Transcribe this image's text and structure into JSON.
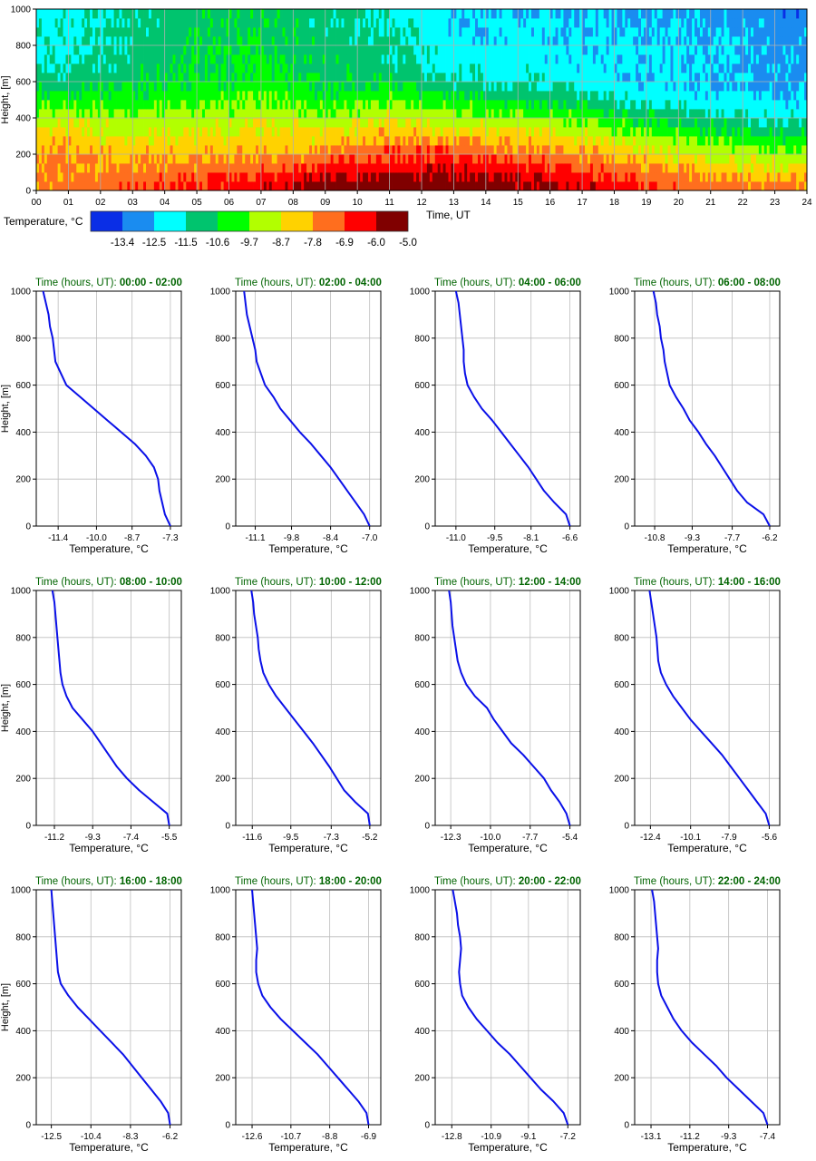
{
  "chart_data": [
    {
      "type": "heatmap",
      "title": "",
      "xlabel": "Time, UT",
      "ylabel": "Height, [m]",
      "xlim": [
        0,
        24
      ],
      "ylim": [
        0,
        1000
      ],
      "x_ticks": [
        "00",
        "01",
        "02",
        "03",
        "04",
        "05",
        "06",
        "07",
        "08",
        "09",
        "10",
        "11",
        "12",
        "13",
        "14",
        "15",
        "16",
        "17",
        "18",
        "19",
        "20",
        "21",
        "22",
        "23",
        "24"
      ],
      "y_ticks": [
        "0",
        "200",
        "400",
        "600",
        "800",
        "1000"
      ],
      "heights": [
        0,
        100,
        150,
        200,
        250,
        300,
        350,
        400,
        450,
        500,
        550,
        600,
        650,
        700,
        750,
        800,
        850,
        900,
        950,
        1000
      ],
      "times": [
        0,
        2,
        4,
        6,
        8,
        10,
        12,
        14,
        16,
        18,
        20,
        22,
        24
      ],
      "colorbar": {
        "label": "Temperature, °C",
        "tick_labels": [
          "-13.4",
          "-12.5",
          "-11.5",
          "-10.6",
          "-9.7",
          "-8.7",
          "-7.8",
          "-6.9",
          "-6.0",
          "-5.0"
        ],
        "bounds": [
          -14.3,
          -13.4,
          -12.5,
          -11.5,
          -10.6,
          -9.7,
          -8.7,
          -7.8,
          -6.9,
          -6.0,
          -5.0
        ],
        "colors": [
          "#0a2ee6",
          "#1a8cf0",
          "#00ffff",
          "#00c46e",
          "#00ff00",
          "#b2ff00",
          "#ffd200",
          "#ff6e1e",
          "#ff0000",
          "#800000"
        ]
      }
    },
    {
      "type": "line",
      "title": "Time (hours, UT): 00:00 - 02:00",
      "xlabel": "Temperature, °C",
      "ylabel": "Height, [m]",
      "xlim": [
        -12.2,
        -6.9
      ],
      "ylim": [
        0,
        1000
      ],
      "x_ticks": [
        -11.4,
        -10.0,
        -8.7,
        -7.3
      ],
      "x_tick_labels": [
        "-11.4",
        "-10.0",
        "-8.7",
        "-7.3"
      ],
      "y_ticks": [
        "0",
        "200",
        "400",
        "600",
        "800",
        "1000"
      ],
      "heights": [
        0,
        50,
        100,
        150,
        200,
        250,
        300,
        350,
        400,
        450,
        500,
        550,
        600,
        650,
        700,
        750,
        800,
        850,
        900,
        950,
        1000
      ],
      "values": [
        -7.3,
        -7.5,
        -7.6,
        -7.7,
        -7.75,
        -7.9,
        -8.2,
        -8.6,
        -9.1,
        -9.6,
        -10.1,
        -10.6,
        -11.1,
        -11.3,
        -11.5,
        -11.55,
        -11.6,
        -11.7,
        -11.75,
        -11.85,
        -11.95
      ]
    },
    {
      "type": "line",
      "title": "Time (hours, UT): 02:00 - 04:00",
      "xlabel": "Temperature, °C",
      "ylabel": "Height, [m]",
      "xlim": [
        -11.8,
        -6.6
      ],
      "ylim": [
        0,
        1000
      ],
      "x_ticks": [
        -11.1,
        -9.8,
        -8.4,
        -7.0
      ],
      "x_tick_labels": [
        "-11.1",
        "-9.8",
        "-8.4",
        "-7.0"
      ],
      "y_ticks": [
        "0",
        "200",
        "400",
        "600",
        "800",
        "1000"
      ],
      "heights": [
        0,
        50,
        100,
        150,
        200,
        250,
        300,
        350,
        400,
        450,
        500,
        550,
        600,
        650,
        700,
        750,
        800,
        850,
        900,
        950,
        1000
      ],
      "values": [
        -7.0,
        -7.2,
        -7.5,
        -7.8,
        -8.1,
        -8.4,
        -8.75,
        -9.1,
        -9.5,
        -9.85,
        -10.2,
        -10.45,
        -10.75,
        -10.9,
        -11.05,
        -11.1,
        -11.2,
        -11.3,
        -11.4,
        -11.45,
        -11.5
      ]
    },
    {
      "type": "line",
      "title": "Time (hours, UT): 04:00 - 06:00",
      "xlabel": "Temperature, °C",
      "ylabel": "Height, [m]",
      "xlim": [
        -11.8,
        -6.2
      ],
      "ylim": [
        0,
        1000
      ],
      "x_ticks": [
        -11.0,
        -9.5,
        -8.1,
        -6.6
      ],
      "x_tick_labels": [
        "-11.0",
        "-9.5",
        "-8.1",
        "-6.6"
      ],
      "y_ticks": [
        "0",
        "200",
        "400",
        "600",
        "800",
        "1000"
      ],
      "heights": [
        0,
        50,
        100,
        150,
        200,
        250,
        300,
        350,
        400,
        450,
        500,
        550,
        600,
        650,
        700,
        750,
        800,
        850,
        900,
        950,
        1000
      ],
      "values": [
        -6.6,
        -6.75,
        -7.2,
        -7.6,
        -7.9,
        -8.2,
        -8.55,
        -8.9,
        -9.25,
        -9.6,
        -10.0,
        -10.3,
        -10.55,
        -10.65,
        -10.7,
        -10.7,
        -10.75,
        -10.8,
        -10.85,
        -10.9,
        -11.0
      ]
    },
    {
      "type": "line",
      "title": "Time (hours, UT): 06:00 - 08:00",
      "xlabel": "Temperature, °C",
      "ylabel": "Height, [m]",
      "xlim": [
        -11.6,
        -5.8
      ],
      "ylim": [
        0,
        1000
      ],
      "x_ticks": [
        -10.8,
        -9.3,
        -7.7,
        -6.2
      ],
      "x_tick_labels": [
        "-10.8",
        "-9.3",
        "-7.7",
        "-6.2"
      ],
      "y_ticks": [
        "0",
        "200",
        "400",
        "600",
        "800",
        "1000"
      ],
      "heights": [
        0,
        50,
        100,
        150,
        200,
        250,
        300,
        350,
        400,
        450,
        500,
        550,
        600,
        650,
        700,
        750,
        800,
        850,
        900,
        950,
        1000
      ],
      "values": [
        -6.2,
        -6.45,
        -7.1,
        -7.5,
        -7.8,
        -8.1,
        -8.4,
        -8.75,
        -9.05,
        -9.4,
        -9.65,
        -9.95,
        -10.2,
        -10.3,
        -10.4,
        -10.45,
        -10.55,
        -10.6,
        -10.7,
        -10.75,
        -10.85
      ]
    },
    {
      "type": "line",
      "title": "Time (hours, UT): 08:00 - 10:00",
      "xlabel": "Temperature, °C",
      "ylabel": "Height, [m]",
      "xlim": [
        -12.1,
        -4.9
      ],
      "ylim": [
        0,
        1000
      ],
      "x_ticks": [
        -11.2,
        -9.3,
        -7.4,
        -5.5
      ],
      "x_tick_labels": [
        "-11.2",
        "-9.3",
        "-7.4",
        "-5.5"
      ],
      "y_ticks": [
        "0",
        "200",
        "400",
        "600",
        "800",
        "1000"
      ],
      "heights": [
        0,
        50,
        100,
        150,
        200,
        250,
        300,
        350,
        400,
        450,
        500,
        550,
        600,
        650,
        700,
        750,
        800,
        850,
        900,
        950,
        1000
      ],
      "values": [
        -5.5,
        -5.6,
        -6.3,
        -7.0,
        -7.6,
        -8.1,
        -8.5,
        -8.9,
        -9.3,
        -9.8,
        -10.3,
        -10.6,
        -10.8,
        -10.9,
        -10.95,
        -11.0,
        -11.05,
        -11.1,
        -11.15,
        -11.2,
        -11.3
      ]
    },
    {
      "type": "line",
      "title": "Time (hours, UT): 10:00 - 12:00",
      "xlabel": "Temperature, °C",
      "ylabel": "Height, [m]",
      "xlim": [
        -12.5,
        -4.6
      ],
      "ylim": [
        0,
        1000
      ],
      "x_ticks": [
        -11.6,
        -9.5,
        -7.3,
        -5.2
      ],
      "x_tick_labels": [
        "-11.6",
        "-9.5",
        "-7.3",
        "-5.2"
      ],
      "y_ticks": [
        "0",
        "200",
        "400",
        "600",
        "800",
        "1000"
      ],
      "heights": [
        0,
        50,
        100,
        150,
        200,
        250,
        300,
        350,
        400,
        450,
        500,
        550,
        600,
        650,
        700,
        750,
        800,
        850,
        900,
        950,
        1000
      ],
      "values": [
        -5.2,
        -5.3,
        -6.0,
        -6.6,
        -7.0,
        -7.4,
        -7.85,
        -8.3,
        -8.8,
        -9.3,
        -9.8,
        -10.3,
        -10.7,
        -11.0,
        -11.15,
        -11.25,
        -11.3,
        -11.4,
        -11.5,
        -11.55,
        -11.65
      ]
    },
    {
      "type": "line",
      "title": "Time (hours, UT): 12:00 - 14:00",
      "xlabel": "Temperature, °C",
      "ylabel": "Height, [m]",
      "xlim": [
        -13.2,
        -4.8
      ],
      "ylim": [
        0,
        1000
      ],
      "x_ticks": [
        -12.3,
        -10.0,
        -7.7,
        -5.4
      ],
      "x_tick_labels": [
        "-12.3",
        "-10.0",
        "-7.7",
        "-5.4"
      ],
      "y_ticks": [
        "0",
        "200",
        "400",
        "600",
        "800",
        "1000"
      ],
      "heights": [
        0,
        50,
        100,
        150,
        200,
        250,
        300,
        350,
        400,
        450,
        500,
        550,
        600,
        650,
        700,
        750,
        800,
        850,
        900,
        950,
        1000
      ],
      "values": [
        -5.4,
        -5.6,
        -6.0,
        -6.5,
        -6.9,
        -7.5,
        -8.1,
        -8.8,
        -9.3,
        -9.8,
        -10.2,
        -10.9,
        -11.4,
        -11.7,
        -11.9,
        -12.0,
        -12.1,
        -12.2,
        -12.25,
        -12.3,
        -12.4
      ]
    },
    {
      "type": "line",
      "title": "Time (hours, UT): 14:00 - 16:00",
      "xlabel": "Temperature, °C",
      "ylabel": "Height, [m]",
      "xlim": [
        -13.3,
        -5.0
      ],
      "ylim": [
        0,
        1000
      ],
      "x_ticks": [
        -12.4,
        -10.1,
        -7.9,
        -5.6
      ],
      "x_tick_labels": [
        "-12.4",
        "-10.1",
        "-7.9",
        "-5.6"
      ],
      "y_ticks": [
        "0",
        "200",
        "400",
        "600",
        "800",
        "1000"
      ],
      "heights": [
        0,
        50,
        100,
        150,
        200,
        250,
        300,
        350,
        400,
        450,
        500,
        550,
        600,
        650,
        700,
        750,
        800,
        850,
        900,
        950,
        1000
      ],
      "values": [
        -5.6,
        -5.8,
        -6.3,
        -6.8,
        -7.3,
        -7.8,
        -8.3,
        -8.9,
        -9.5,
        -10.1,
        -10.6,
        -11.1,
        -11.5,
        -11.8,
        -11.95,
        -12.0,
        -12.05,
        -12.15,
        -12.25,
        -12.35,
        -12.45
      ]
    },
    {
      "type": "line",
      "title": "Time (hours, UT): 16:00 - 18:00",
      "xlabel": "Temperature, °C",
      "ylabel": "Height, [m]",
      "xlim": [
        -13.3,
        -5.6
      ],
      "ylim": [
        0,
        1000
      ],
      "x_ticks": [
        -12.5,
        -10.4,
        -8.3,
        -6.2
      ],
      "x_tick_labels": [
        "-12.5",
        "-10.4",
        "-8.3",
        "-6.2"
      ],
      "y_ticks": [
        "0",
        "200",
        "400",
        "600",
        "800",
        "1000"
      ],
      "heights": [
        0,
        50,
        100,
        150,
        200,
        250,
        300,
        350,
        400,
        450,
        500,
        550,
        600,
        650,
        700,
        750,
        800,
        850,
        900,
        950,
        1000
      ],
      "values": [
        -6.2,
        -6.3,
        -6.7,
        -7.2,
        -7.7,
        -8.2,
        -8.7,
        -9.3,
        -9.9,
        -10.5,
        -11.1,
        -11.6,
        -12.0,
        -12.15,
        -12.2,
        -12.25,
        -12.3,
        -12.35,
        -12.4,
        -12.45,
        -12.5
      ]
    },
    {
      "type": "line",
      "title": "Time (hours, UT): 18:00 - 20:00",
      "xlabel": "Temperature, °C",
      "ylabel": "Height, [m]",
      "xlim": [
        -13.4,
        -6.3
      ],
      "ylim": [
        0,
        1000
      ],
      "x_ticks": [
        -12.6,
        -10.7,
        -8.8,
        -6.9
      ],
      "x_tick_labels": [
        "-12.6",
        "-10.7",
        "-8.8",
        "-6.9"
      ],
      "y_ticks": [
        "0",
        "200",
        "400",
        "600",
        "800",
        "1000"
      ],
      "heights": [
        0,
        50,
        100,
        150,
        200,
        250,
        300,
        350,
        400,
        450,
        500,
        550,
        600,
        650,
        700,
        750,
        800,
        850,
        900,
        950,
        1000
      ],
      "values": [
        -6.9,
        -7.0,
        -7.4,
        -7.9,
        -8.4,
        -8.9,
        -9.4,
        -10.0,
        -10.6,
        -11.2,
        -11.7,
        -12.1,
        -12.3,
        -12.4,
        -12.4,
        -12.35,
        -12.4,
        -12.45,
        -12.5,
        -12.55,
        -12.6
      ]
    },
    {
      "type": "line",
      "title": "Time (hours, UT): 20:00 - 22:00",
      "xlabel": "Temperature, °C",
      "ylabel": "Height, [m]",
      "xlim": [
        -13.6,
        -6.6
      ],
      "ylim": [
        0,
        1000
      ],
      "x_ticks": [
        -12.8,
        -10.9,
        -9.1,
        -7.2
      ],
      "x_tick_labels": [
        "-12.8",
        "-10.9",
        "-9.1",
        "-7.2"
      ],
      "y_ticks": [
        "0",
        "200",
        "400",
        "600",
        "800",
        "1000"
      ],
      "heights": [
        0,
        50,
        100,
        150,
        200,
        250,
        300,
        350,
        400,
        450,
        500,
        550,
        600,
        650,
        700,
        750,
        800,
        850,
        900,
        950,
        1000
      ],
      "values": [
        -7.2,
        -7.4,
        -7.9,
        -8.5,
        -9.0,
        -9.5,
        -10.0,
        -10.6,
        -11.1,
        -11.6,
        -12.0,
        -12.3,
        -12.4,
        -12.45,
        -12.4,
        -12.35,
        -12.4,
        -12.5,
        -12.55,
        -12.65,
        -12.75
      ]
    },
    {
      "type": "line",
      "title": "Time (hours, UT): 22:00 - 24:00",
      "xlabel": "Temperature, °C",
      "ylabel": "Height, [m]",
      "xlim": [
        -13.9,
        -6.8
      ],
      "ylim": [
        0,
        1000
      ],
      "x_ticks": [
        -13.1,
        -11.2,
        -9.3,
        -7.4
      ],
      "x_tick_labels": [
        "-13.1",
        "-11.2",
        "-9.3",
        "-7.4"
      ],
      "y_ticks": [
        "0",
        "200",
        "400",
        "600",
        "800",
        "1000"
      ],
      "heights": [
        0,
        50,
        100,
        150,
        200,
        250,
        300,
        350,
        400,
        450,
        500,
        550,
        600,
        650,
        700,
        750,
        800,
        850,
        900,
        950,
        1000
      ],
      "values": [
        -7.4,
        -7.6,
        -8.2,
        -8.8,
        -9.4,
        -9.9,
        -10.5,
        -11.1,
        -11.6,
        -12.0,
        -12.3,
        -12.6,
        -12.75,
        -12.8,
        -12.8,
        -12.75,
        -12.8,
        -12.85,
        -12.9,
        -12.95,
        -13.05
      ]
    }
  ]
}
